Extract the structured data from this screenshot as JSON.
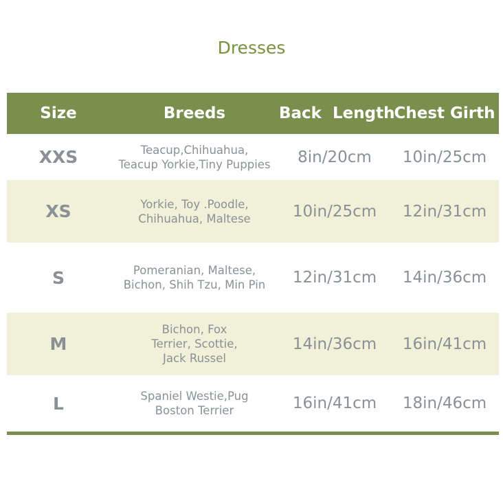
{
  "title": "Dresses",
  "colors": {
    "accent": "#7a8e4e",
    "band": "#f1f0d8",
    "text": "#8a9196"
  },
  "headers": [
    "Size",
    "Breeds",
    "Back  Length",
    "Chest Girth"
  ],
  "rows": [
    {
      "size": "XXS",
      "breeds": [
        "Teacup,Chihuahua,",
        "Teacup Yorkie,Tiny Puppies"
      ],
      "back": "8in/20cm",
      "chest": "10in/25cm"
    },
    {
      "size": "XS",
      "breeds": [
        "Yorkie, Toy .Poodle,",
        "Chihuahua, Maltese"
      ],
      "back": "10in/25cm",
      "chest": "12in/31cm"
    },
    {
      "size": "S",
      "breeds": [
        "Pomeranian, Maltese,",
        "Bichon, Shih Tzu, Min Pin"
      ],
      "back": "12in/31cm",
      "chest": "14in/36cm"
    },
    {
      "size": "M",
      "breeds": [
        "Bichon, Fox",
        "Terrier, Scottie,",
        "Jack Russel"
      ],
      "back": "14in/36cm",
      "chest": "16in/41cm"
    },
    {
      "size": "L",
      "breeds": [
        "Spaniel Westie,Pug",
        "Boston Terrier"
      ],
      "back": "16in/41cm",
      "chest": "18in/46cm"
    }
  ]
}
